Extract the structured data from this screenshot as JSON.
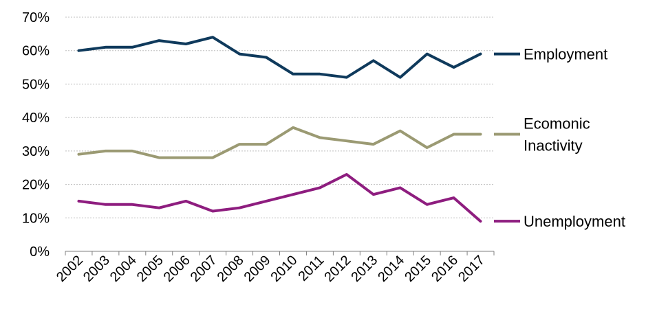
{
  "chart_data": {
    "type": "line",
    "title": "",
    "xlabel": "",
    "ylabel": "",
    "categories": [
      "2002",
      "2003",
      "2004",
      "2005",
      "2006",
      "2007",
      "2008",
      "2009",
      "2010",
      "2011",
      "2012",
      "2013",
      "2014",
      "2015",
      "2016",
      "2017"
    ],
    "ylim": [
      0,
      70
    ],
    "y_ticks": [
      "0%",
      "10%",
      "20%",
      "30%",
      "40%",
      "50%",
      "60%",
      "70%"
    ],
    "grid": true,
    "legend_position": "right",
    "series": [
      {
        "name": "Employment",
        "legend_lines": [
          "Employment"
        ],
        "color": "#0f3a5c",
        "values": [
          60,
          61,
          61,
          63,
          62,
          64,
          59,
          58,
          53,
          53,
          52,
          57,
          52,
          59,
          55,
          59
        ]
      },
      {
        "name": "Ecomonic Inactivity",
        "legend_lines": [
          "Ecomonic",
          "Inactivity"
        ],
        "color": "#9b9a73",
        "values": [
          29,
          30,
          30,
          28,
          28,
          28,
          32,
          32,
          37,
          34,
          33,
          32,
          36,
          31,
          35,
          35
        ]
      },
      {
        "name": "Unemployment",
        "legend_lines": [
          "Unemployment"
        ],
        "color": "#8e1d7f",
        "values": [
          15,
          14,
          14,
          13,
          15,
          12,
          13,
          15,
          17,
          19,
          23,
          17,
          19,
          14,
          16,
          9
        ]
      }
    ]
  }
}
